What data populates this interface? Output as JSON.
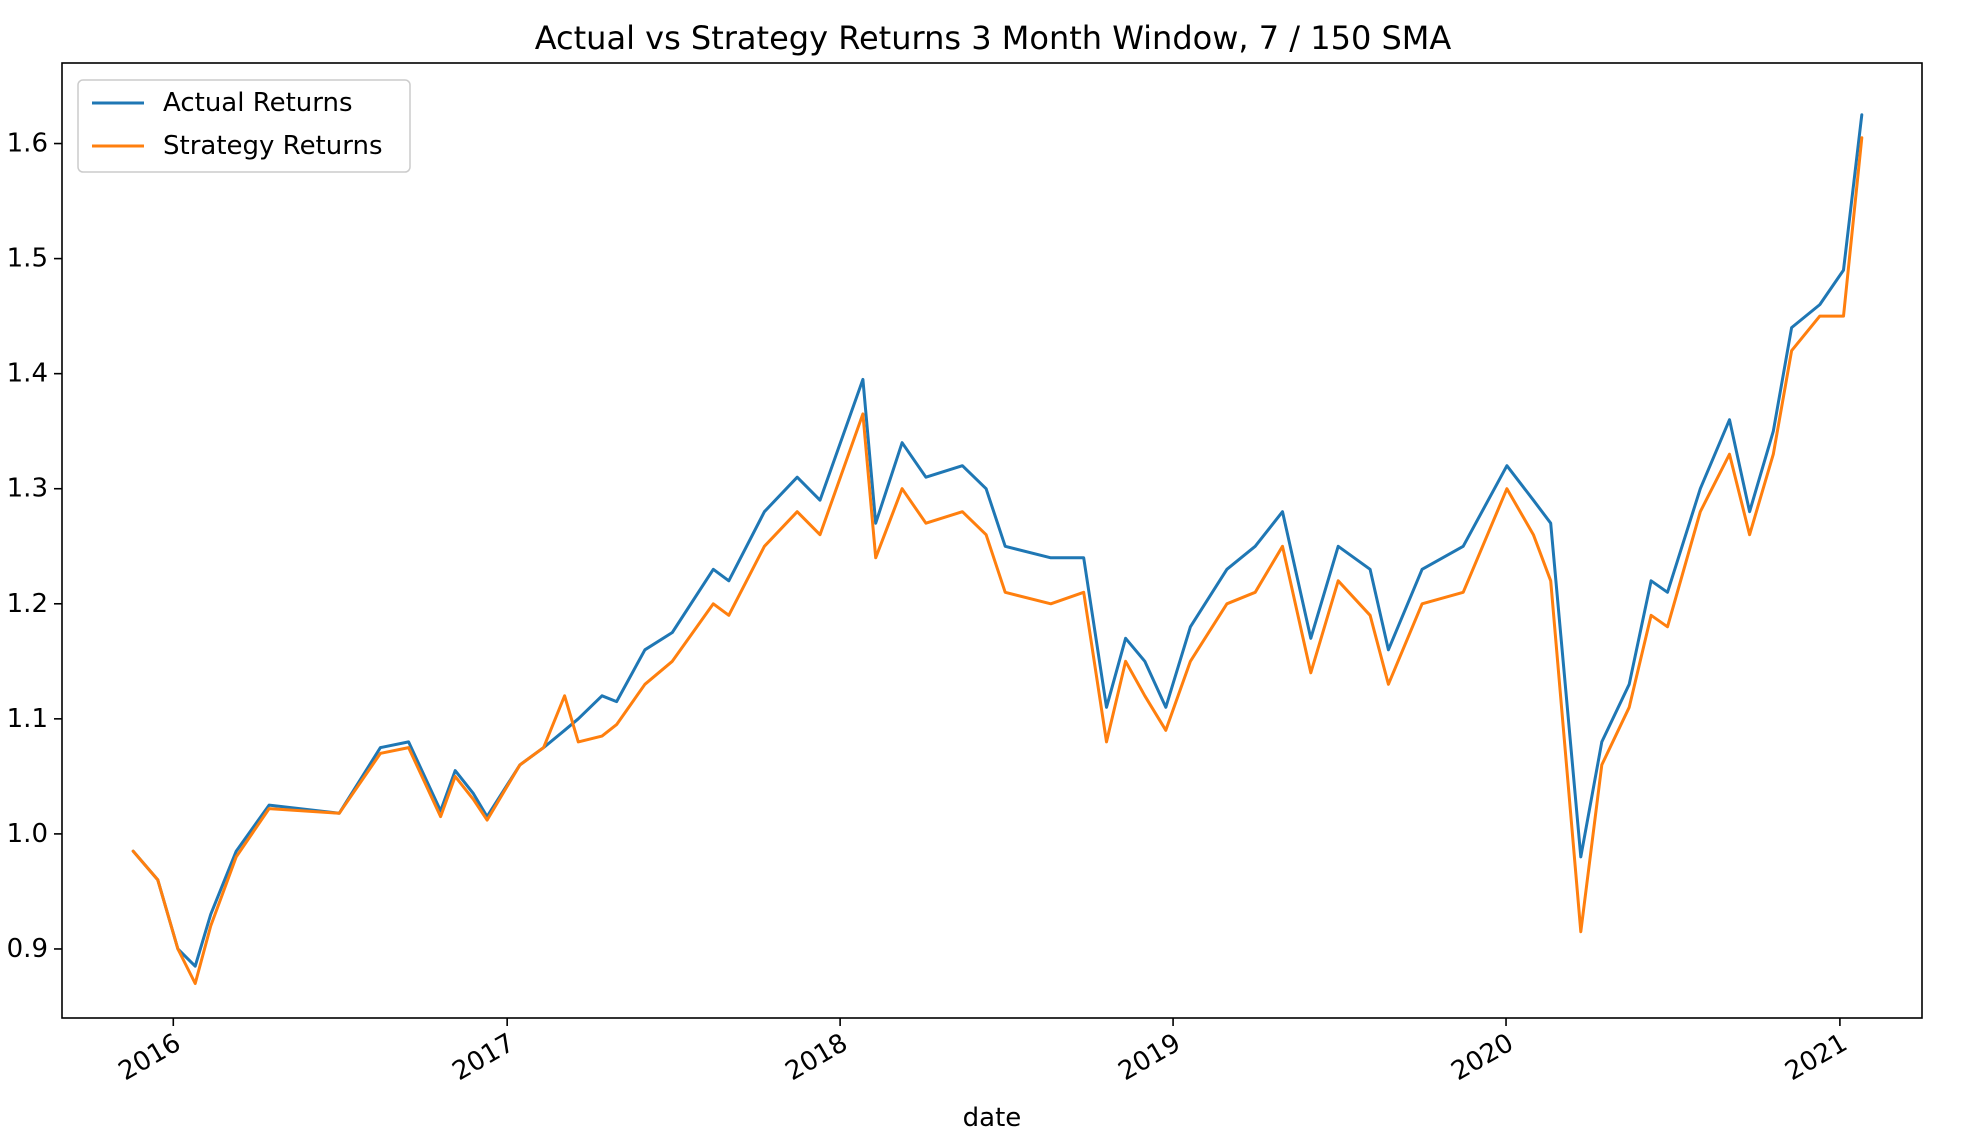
{
  "chart_data": {
    "type": "line",
    "title": "Actual vs Strategy Returns 3 Month Window, 7 / 150 SMA",
    "xlabel": "date",
    "ylabel": "",
    "xlim": [
      "2015-09-01",
      "2021-04-01"
    ],
    "ylim": [
      0.84,
      1.67
    ],
    "x_ticks": [
      "2016",
      "2017",
      "2018",
      "2019",
      "2020",
      "2021"
    ],
    "y_ticks": [
      0.9,
      1.0,
      1.1,
      1.2,
      1.3,
      1.4,
      1.5,
      1.6
    ],
    "grid": false,
    "legend": {
      "position": "top-left"
    },
    "x": [
      "2015-11-18",
      "2015-12-15",
      "2016-01-06",
      "2016-01-25",
      "2016-02-11",
      "2016-03-10",
      "2016-04-15",
      "2016-07-01",
      "2016-08-15",
      "2016-09-15",
      "2016-10-20",
      "2016-11-05",
      "2016-11-25",
      "2016-12-10",
      "2017-01-15",
      "2017-02-10",
      "2017-03-05",
      "2017-03-20",
      "2017-04-15",
      "2017-05-01",
      "2017-06-01",
      "2017-07-01",
      "2017-08-15",
      "2017-09-01",
      "2017-10-10",
      "2017-11-15",
      "2017-12-10",
      "2018-01-26",
      "2018-02-09",
      "2018-03-10",
      "2018-04-05",
      "2018-05-15",
      "2018-06-10",
      "2018-07-01",
      "2018-08-20",
      "2018-09-25",
      "2018-10-20",
      "2018-11-10",
      "2018-12-01",
      "2018-12-24",
      "2019-01-20",
      "2019-03-01",
      "2019-04-01",
      "2019-05-01",
      "2019-06-01",
      "2019-07-01",
      "2019-08-05",
      "2019-08-25",
      "2019-10-01",
      "2019-11-15",
      "2020-01-02",
      "2020-01-31",
      "2020-02-19",
      "2020-03-23",
      "2020-04-15",
      "2020-05-15",
      "2020-06-08",
      "2020-06-26",
      "2020-08-01",
      "2020-09-02",
      "2020-09-24",
      "2020-10-20",
      "2020-11-09",
      "2020-12-10",
      "2021-01-05",
      "2021-01-25"
    ],
    "series": [
      {
        "name": "Actual Returns",
        "color": "#1f77b4",
        "values": [
          0.985,
          0.96,
          0.9,
          0.885,
          0.93,
          0.985,
          1.025,
          1.018,
          1.075,
          1.08,
          1.02,
          1.055,
          1.035,
          1.015,
          1.06,
          1.075,
          1.09,
          1.1,
          1.12,
          1.115,
          1.16,
          1.175,
          1.23,
          1.22,
          1.28,
          1.31,
          1.29,
          1.395,
          1.27,
          1.34,
          1.31,
          1.32,
          1.3,
          1.25,
          1.24,
          1.24,
          1.11,
          1.17,
          1.15,
          1.11,
          1.18,
          1.23,
          1.25,
          1.28,
          1.17,
          1.25,
          1.23,
          1.16,
          1.23,
          1.25,
          1.32,
          1.29,
          1.27,
          0.98,
          1.08,
          1.13,
          1.22,
          1.21,
          1.3,
          1.36,
          1.28,
          1.35,
          1.44,
          1.46,
          1.49,
          1.625
        ]
      },
      {
        "name": "Strategy Returns",
        "color": "#ff7f0e",
        "values": [
          0.985,
          0.96,
          0.9,
          0.87,
          0.92,
          0.98,
          1.022,
          1.018,
          1.07,
          1.075,
          1.015,
          1.05,
          1.03,
          1.012,
          1.06,
          1.075,
          1.12,
          1.08,
          1.085,
          1.095,
          1.13,
          1.15,
          1.2,
          1.19,
          1.25,
          1.28,
          1.26,
          1.365,
          1.24,
          1.3,
          1.27,
          1.28,
          1.26,
          1.21,
          1.2,
          1.21,
          1.08,
          1.15,
          1.12,
          1.09,
          1.15,
          1.2,
          1.21,
          1.25,
          1.14,
          1.22,
          1.19,
          1.13,
          1.2,
          1.21,
          1.3,
          1.26,
          1.22,
          0.915,
          1.06,
          1.11,
          1.19,
          1.18,
          1.28,
          1.33,
          1.26,
          1.33,
          1.42,
          1.45,
          1.45,
          1.605
        ]
      }
    ]
  }
}
